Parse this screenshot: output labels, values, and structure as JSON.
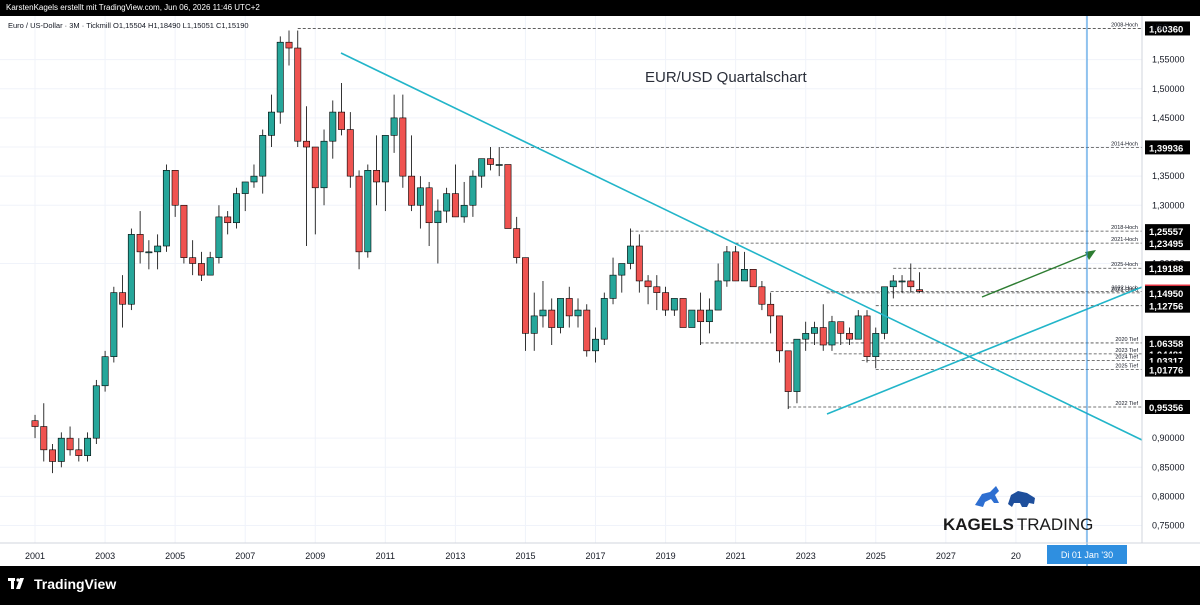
{
  "header": {
    "text": "KarstenKagels erstellt mit TradingView.com, Jun 06, 2026 11:46 UTC+2"
  },
  "symbol_line": "Euro / US-Dollar · 3M · Tickmill  O1,15504  H1,18490  L1,15051  C1,15190",
  "currency": "USD",
  "footer": {
    "brand": "TradingView"
  },
  "watermark": {
    "text_bold": "KAGELS",
    "text_light": "TRADING"
  },
  "colors": {
    "up": "#26a69a",
    "down": "#ef5350",
    "trend": "#22b5c9",
    "arrow": "#2e7d32",
    "vline": "#2f8fe0",
    "last": "#f23645"
  },
  "chart_data": {
    "type": "candlestick",
    "title": "EUR/USD Quartalschart",
    "x_ticks": [
      "2001",
      "2003",
      "2005",
      "2007",
      "2009",
      "2011",
      "2013",
      "2015",
      "2017",
      "2019",
      "2021",
      "2023",
      "2025",
      "2027",
      "20",
      "31"
    ],
    "y_ticks": [
      "1,55000",
      "1,50000",
      "1,45000",
      "1,40000",
      "1,35000",
      "1,30000",
      "1,20000",
      "0,90000",
      "0,85000",
      "0,80000",
      "0,75000"
    ],
    "ylim": [
      0.72,
      1.625
    ],
    "xlim": [
      2000.0,
      2032.6
    ],
    "levels": [
      {
        "name": "2008-Hoch",
        "price": "1,60360"
      },
      {
        "name": "2014-Hoch",
        "price": "1,39936"
      },
      {
        "name": "2018-Hoch",
        "price": "1,25557"
      },
      {
        "name": "2021-Hoch",
        "price": "1,23495"
      },
      {
        "name": "2025-Hoch",
        "price": "1,19188"
      },
      {
        "name": "2022 Hoch",
        "price": "1,15190"
      },
      {
        "name": "2023-Hoch",
        "price": "1,14950"
      },
      {
        "name": "",
        "price": "1,12756"
      },
      {
        "name": "2020 Tief",
        "price": "1,06358"
      },
      {
        "name": "2023 Tief",
        "price": "1,04481"
      },
      {
        "name": "2024 Tief",
        "price": "1,03317"
      },
      {
        "name": "2025 Tief",
        "price": "1,01776"
      },
      {
        "name": "2022 Tief",
        "price": "0,95356"
      }
    ],
    "last_price": "1,15190",
    "crosshair_date": "Di 01 Jan '30",
    "candles": [
      [
        2001.0,
        0.93,
        0.94,
        0.9,
        0.92
      ],
      [
        2001.25,
        0.92,
        0.96,
        0.86,
        0.88
      ],
      [
        2001.5,
        0.88,
        0.89,
        0.84,
        0.86
      ],
      [
        2001.75,
        0.86,
        0.91,
        0.85,
        0.9
      ],
      [
        2002.0,
        0.9,
        0.92,
        0.87,
        0.88
      ],
      [
        2002.25,
        0.88,
        0.9,
        0.86,
        0.87
      ],
      [
        2002.5,
        0.87,
        0.91,
        0.86,
        0.9
      ],
      [
        2002.75,
        0.9,
        1.0,
        0.89,
        0.99
      ],
      [
        2003.0,
        0.99,
        1.05,
        0.98,
        1.04
      ],
      [
        2003.25,
        1.04,
        1.16,
        1.03,
        1.15
      ],
      [
        2003.5,
        1.15,
        1.18,
        1.09,
        1.13
      ],
      [
        2003.75,
        1.13,
        1.26,
        1.12,
        1.25
      ],
      [
        2004.0,
        1.25,
        1.29,
        1.2,
        1.22
      ],
      [
        2004.25,
        1.22,
        1.24,
        1.19,
        1.22
      ],
      [
        2004.5,
        1.22,
        1.25,
        1.19,
        1.23
      ],
      [
        2004.75,
        1.23,
        1.37,
        1.22,
        1.36
      ],
      [
        2005.0,
        1.36,
        1.36,
        1.28,
        1.3
      ],
      [
        2005.25,
        1.3,
        1.3,
        1.2,
        1.21
      ],
      [
        2005.5,
        1.21,
        1.24,
        1.18,
        1.2
      ],
      [
        2005.75,
        1.2,
        1.22,
        1.17,
        1.18
      ],
      [
        2006.0,
        1.18,
        1.22,
        1.18,
        1.21
      ],
      [
        2006.25,
        1.21,
        1.3,
        1.2,
        1.28
      ],
      [
        2006.5,
        1.28,
        1.29,
        1.25,
        1.27
      ],
      [
        2006.75,
        1.27,
        1.33,
        1.26,
        1.32
      ],
      [
        2007.0,
        1.32,
        1.34,
        1.29,
        1.34
      ],
      [
        2007.25,
        1.34,
        1.37,
        1.33,
        1.35
      ],
      [
        2007.5,
        1.35,
        1.43,
        1.32,
        1.42
      ],
      [
        2007.75,
        1.42,
        1.49,
        1.4,
        1.46
      ],
      [
        2008.0,
        1.46,
        1.59,
        1.44,
        1.58
      ],
      [
        2008.25,
        1.58,
        1.6,
        1.54,
        1.57
      ],
      [
        2008.5,
        1.57,
        1.6,
        1.4,
        1.41
      ],
      [
        2008.75,
        1.41,
        1.47,
        1.23,
        1.4
      ],
      [
        2009.0,
        1.4,
        1.4,
        1.25,
        1.33
      ],
      [
        2009.25,
        1.33,
        1.43,
        1.3,
        1.41
      ],
      [
        2009.5,
        1.41,
        1.48,
        1.38,
        1.46
      ],
      [
        2009.75,
        1.46,
        1.51,
        1.42,
        1.43
      ],
      [
        2010.0,
        1.43,
        1.46,
        1.33,
        1.35
      ],
      [
        2010.25,
        1.35,
        1.36,
        1.19,
        1.22
      ],
      [
        2010.5,
        1.22,
        1.37,
        1.21,
        1.36
      ],
      [
        2010.75,
        1.36,
        1.42,
        1.3,
        1.34
      ],
      [
        2011.0,
        1.34,
        1.42,
        1.29,
        1.42
      ],
      [
        2011.25,
        1.42,
        1.49,
        1.39,
        1.45
      ],
      [
        2011.5,
        1.45,
        1.49,
        1.33,
        1.35
      ],
      [
        2011.75,
        1.35,
        1.42,
        1.29,
        1.3
      ],
      [
        2012.0,
        1.3,
        1.35,
        1.26,
        1.33
      ],
      [
        2012.25,
        1.33,
        1.34,
        1.23,
        1.27
      ],
      [
        2012.5,
        1.27,
        1.31,
        1.2,
        1.29
      ],
      [
        2012.75,
        1.29,
        1.33,
        1.27,
        1.32
      ],
      [
        2013.0,
        1.32,
        1.37,
        1.28,
        1.28
      ],
      [
        2013.25,
        1.28,
        1.34,
        1.27,
        1.3
      ],
      [
        2013.5,
        1.3,
        1.36,
        1.28,
        1.35
      ],
      [
        2013.75,
        1.35,
        1.38,
        1.33,
        1.38
      ],
      [
        2014.0,
        1.38,
        1.4,
        1.36,
        1.37
      ],
      [
        2014.25,
        1.37,
        1.4,
        1.35,
        1.37
      ],
      [
        2014.5,
        1.37,
        1.37,
        1.26,
        1.26
      ],
      [
        2014.75,
        1.26,
        1.28,
        1.2,
        1.21
      ],
      [
        2015.0,
        1.21,
        1.21,
        1.05,
        1.08
      ],
      [
        2015.25,
        1.08,
        1.15,
        1.05,
        1.11
      ],
      [
        2015.5,
        1.11,
        1.17,
        1.09,
        1.12
      ],
      [
        2015.75,
        1.12,
        1.14,
        1.06,
        1.09
      ],
      [
        2016.0,
        1.09,
        1.14,
        1.08,
        1.14
      ],
      [
        2016.25,
        1.14,
        1.16,
        1.09,
        1.11
      ],
      [
        2016.5,
        1.11,
        1.14,
        1.09,
        1.12
      ],
      [
        2016.75,
        1.12,
        1.13,
        1.04,
        1.05
      ],
      [
        2017.0,
        1.05,
        1.09,
        1.03,
        1.07
      ],
      [
        2017.25,
        1.07,
        1.15,
        1.06,
        1.14
      ],
      [
        2017.5,
        1.14,
        1.21,
        1.13,
        1.18
      ],
      [
        2017.75,
        1.18,
        1.2,
        1.15,
        1.2
      ],
      [
        2018.0,
        1.2,
        1.26,
        1.19,
        1.23
      ],
      [
        2018.25,
        1.23,
        1.25,
        1.15,
        1.17
      ],
      [
        2018.5,
        1.17,
        1.18,
        1.13,
        1.16
      ],
      [
        2018.75,
        1.16,
        1.18,
        1.12,
        1.15
      ],
      [
        2019.0,
        1.15,
        1.16,
        1.11,
        1.12
      ],
      [
        2019.25,
        1.12,
        1.14,
        1.11,
        1.14
      ],
      [
        2019.5,
        1.14,
        1.14,
        1.09,
        1.09
      ],
      [
        2019.75,
        1.09,
        1.12,
        1.09,
        1.12
      ],
      [
        2020.0,
        1.12,
        1.15,
        1.06,
        1.1
      ],
      [
        2020.25,
        1.1,
        1.14,
        1.08,
        1.12
      ],
      [
        2020.5,
        1.12,
        1.2,
        1.12,
        1.17
      ],
      [
        2020.75,
        1.17,
        1.23,
        1.16,
        1.22
      ],
      [
        2021.0,
        1.22,
        1.23,
        1.17,
        1.17
      ],
      [
        2021.25,
        1.17,
        1.22,
        1.17,
        1.19
      ],
      [
        2021.5,
        1.19,
        1.19,
        1.16,
        1.16
      ],
      [
        2021.75,
        1.16,
        1.17,
        1.12,
        1.13
      ],
      [
        2022.0,
        1.13,
        1.15,
        1.08,
        1.11
      ],
      [
        2022.25,
        1.11,
        1.11,
        1.03,
        1.05
      ],
      [
        2022.5,
        1.05,
        1.05,
        0.95,
        0.98
      ],
      [
        2022.75,
        0.98,
        1.07,
        0.96,
        1.07
      ],
      [
        2023.0,
        1.07,
        1.1,
        1.05,
        1.08
      ],
      [
        2023.25,
        1.08,
        1.1,
        1.06,
        1.09
      ],
      [
        2023.5,
        1.09,
        1.13,
        1.05,
        1.06
      ],
      [
        2023.75,
        1.06,
        1.11,
        1.05,
        1.1
      ],
      [
        2024.0,
        1.1,
        1.1,
        1.06,
        1.08
      ],
      [
        2024.25,
        1.08,
        1.09,
        1.06,
        1.07
      ],
      [
        2024.5,
        1.07,
        1.12,
        1.07,
        1.11
      ],
      [
        2024.75,
        1.11,
        1.12,
        1.03,
        1.04
      ],
      [
        2025.0,
        1.04,
        1.09,
        1.02,
        1.08
      ],
      [
        2025.25,
        1.08,
        1.16,
        1.07,
        1.16
      ],
      [
        2025.5,
        1.16,
        1.18,
        1.14,
        1.17
      ],
      [
        2025.75,
        1.17,
        1.18,
        1.15,
        1.17
      ],
      [
        2026.0,
        1.17,
        1.2,
        1.15,
        1.16
      ],
      [
        2026.25,
        1.155,
        1.185,
        1.15,
        1.152
      ]
    ]
  }
}
